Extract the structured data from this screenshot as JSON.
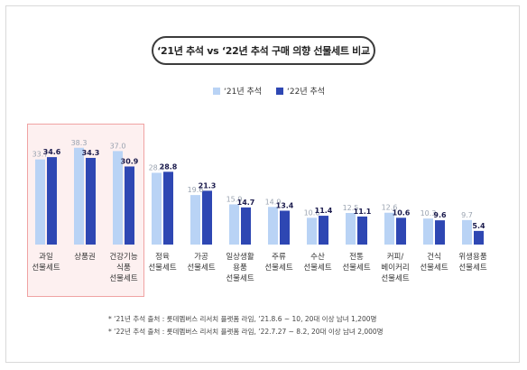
{
  "chart_data": {
    "type": "bar",
    "title": "‘21년 추석 vs ‘22년 추석 구매 의향 선물세트 비교",
    "series": [
      {
        "name": "‘21년 추석",
        "color": "#b9d3f5",
        "values": [
          33.7,
          38.3,
          37.0,
          28.4,
          19.6,
          15.9,
          14.9,
          10.6,
          12.5,
          12.6,
          10.3,
          9.7
        ]
      },
      {
        "name": "‘22년 추석",
        "color": "#2e47b3",
        "values": [
          34.6,
          34.3,
          30.9,
          28.8,
          21.3,
          14.7,
          13.4,
          11.4,
          11.1,
          10.6,
          9.6,
          5.4
        ]
      }
    ],
    "categories": [
      [
        "과일",
        "선물세트"
      ],
      [
        "상품권"
      ],
      [
        "건강기능",
        "식품",
        "선물세트"
      ],
      [
        "정육",
        "선물세트"
      ],
      [
        "가공",
        "선물세트"
      ],
      [
        "일상생활",
        "용품",
        "선물세트"
      ],
      [
        "주류",
        "선물세트"
      ],
      [
        "수산",
        "선물세트"
      ],
      [
        "전통",
        "선물세트"
      ],
      [
        "커피/",
        "베이커리",
        "선물세트"
      ],
      [
        "건식",
        "선물세트"
      ],
      [
        "위생용품",
        "선물세트"
      ]
    ],
    "value_labels": {
      "s21": [
        "33.7",
        "38.3",
        "37.0",
        "28.4",
        "19.6",
        "15.9",
        "14.9",
        "10.6",
        "12.5",
        "12.6",
        "10.3",
        "9.7"
      ],
      "s22": [
        "34.6",
        "34.3",
        "30.9",
        "28.8",
        "21.3",
        "14.7",
        "13.4",
        "11.4",
        "11.1",
        "10.6",
        "9.6",
        "5.4"
      ]
    },
    "highlighted_categories": [
      "과일 선물세트",
      "상품권",
      "건강기능 식품 선물세트"
    ],
    "highlight_color": "#f0a3a3",
    "label_color_21": "#9aa3b0",
    "label_color_22": "#1b1b4d",
    "ylim": [
      0,
      40
    ],
    "grid": false,
    "legend_position": "top-center"
  },
  "legend": {
    "label_21": "‘21년 추석",
    "label_22": "‘22년 추석"
  },
  "notes": {
    "note1": "* ‘21년 추석 출처 : 롯데멤버스 리서치 플랫폼 라임, ‘21.8.6 ~ 10, 20대 이상 남녀 1,200명",
    "note2": "* ‘22년 추석 출처 : 롯데멤버스 리서치 플랫폼 라임, ‘22.7.27 ~ 8.2, 20대 이상 남녀 2,000명"
  }
}
